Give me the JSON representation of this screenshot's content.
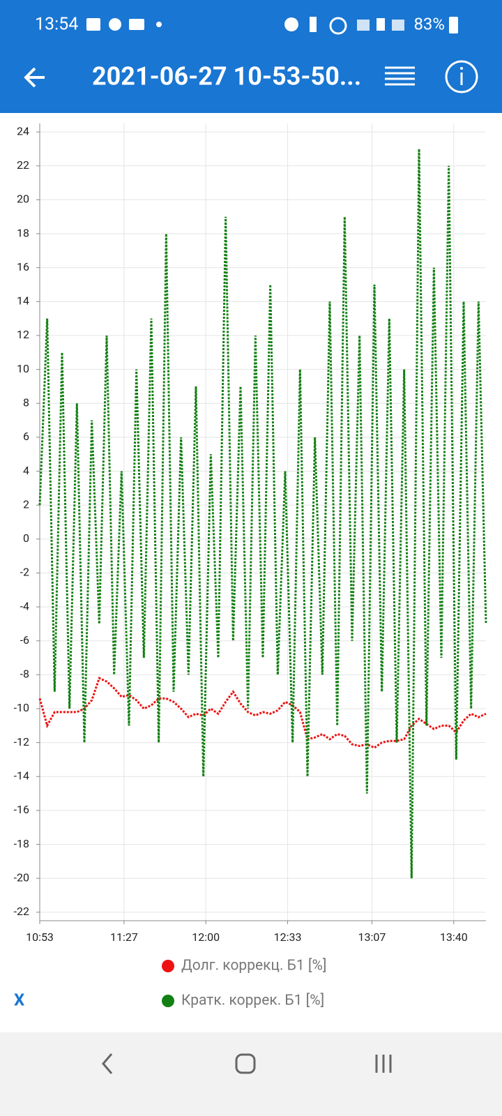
{
  "status_bar": {
    "time": "13:54",
    "battery": "83%"
  },
  "app_bar": {
    "title": "2021-06-27 10-53-50..."
  },
  "close_button": "X",
  "chart_data": {
    "type": "line",
    "x": [
      653,
      656,
      659,
      662,
      665,
      668,
      671,
      674,
      677,
      680,
      683,
      686,
      689,
      692,
      695,
      698,
      701,
      704,
      707,
      710,
      713,
      716,
      719,
      722,
      725,
      728,
      731,
      734,
      737,
      740,
      743,
      746,
      749,
      752,
      755,
      758,
      761,
      764,
      767,
      770,
      773,
      776,
      779,
      782,
      785,
      788,
      791,
      794,
      797,
      800,
      803,
      806,
      809,
      812,
      815,
      818,
      821,
      824,
      827,
      830,
      833
    ],
    "series": [
      {
        "name": "Долг. коррекц. Б1 [%]",
        "color": "#ee1111",
        "values": [
          -9.4,
          -11,
          -10.2,
          -10.2,
          -10.2,
          -10.2,
          -10,
          -9.5,
          -8.2,
          -8.4,
          -8.8,
          -9.3,
          -9.2,
          -9.5,
          -10,
          -9.8,
          -9.4,
          -9.4,
          -9.6,
          -10,
          -10.5,
          -10.3,
          -10.4,
          -10,
          -10.3,
          -9.6,
          -9,
          -9.7,
          -10.2,
          -10.4,
          -10.2,
          -10.3,
          -10.1,
          -9.6,
          -9.8,
          -10.2,
          -11.8,
          -11.7,
          -11.5,
          -11.8,
          -11.5,
          -11.6,
          -12.1,
          -12.2,
          -12.1,
          -12.3,
          -12,
          -11.9,
          -11.9,
          -11.8,
          -11,
          -10.6,
          -10.9,
          -11.2,
          -11,
          -11,
          -11.4,
          -10.7,
          -10.3,
          -10.5,
          -10.3
        ]
      },
      {
        "name": "Кратк. коррек. Б1 [%]",
        "color": "#138013",
        "values": [
          2,
          13,
          -9,
          11,
          -10,
          8,
          -12,
          7,
          -5,
          12,
          -8,
          4,
          -11,
          10,
          -7,
          13,
          -12,
          18,
          -9,
          6,
          -8,
          9,
          -14,
          5,
          -7,
          19,
          -6,
          9,
          -10,
          12,
          -7,
          15,
          -8,
          4,
          -12,
          10,
          -14,
          6,
          -8,
          14,
          -11,
          19,
          -6,
          12,
          -15,
          15,
          -9,
          13,
          -12,
          10,
          -20,
          23,
          -11,
          16,
          -7,
          22,
          -13,
          14,
          -10,
          14,
          -5
        ]
      }
    ],
    "xlim": [
      653,
      833
    ],
    "xticks": [
      {
        "value": 653,
        "label": "10:53"
      },
      {
        "value": 687,
        "label": "11:27"
      },
      {
        "value": 720,
        "label": "12:00"
      },
      {
        "value": 753,
        "label": "12:33"
      },
      {
        "value": 787,
        "label": "13:07"
      },
      {
        "value": 820,
        "label": "13:40"
      }
    ],
    "ylim": [
      -22.5,
      24.5
    ],
    "yticks": [
      -22,
      -20,
      -18,
      -16,
      -14,
      -12,
      -10,
      -8,
      -6,
      -4,
      -2,
      0,
      2,
      4,
      6,
      8,
      10,
      12,
      14,
      16,
      18,
      20,
      22,
      24
    ],
    "grid": true
  }
}
